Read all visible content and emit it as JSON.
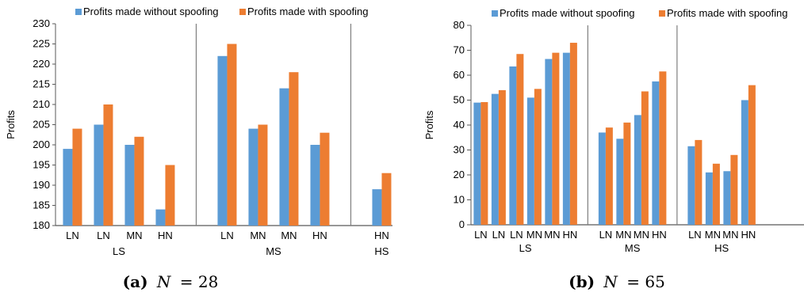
{
  "colors": {
    "without": "#5b9bd5",
    "with": "#ed7d31",
    "axis": "#595959",
    "grid": "#000000"
  },
  "legend": {
    "without": "Profits made without spoofing",
    "with": "Profits made with spoofing"
  },
  "captions": [
    {
      "label": "(a)",
      "math_var": "N",
      "math_rest": "= 28"
    },
    {
      "label": "(b)",
      "math_var": "N",
      "math_rest": "= 65"
    }
  ],
  "chart_data": [
    {
      "type": "bar",
      "ylabel": "Profits",
      "ylim": [
        180,
        230
      ],
      "yticks": [
        180,
        185,
        190,
        195,
        200,
        205,
        210,
        215,
        220,
        225,
        230
      ],
      "series_names": [
        "Profits made without spoofing",
        "Profits made with spoofing"
      ],
      "groups": [
        {
          "name": "LS",
          "categories": [
            "LN",
            "LN",
            "MN",
            "HN"
          ],
          "without": [
            199,
            205,
            200,
            184
          ],
          "with": [
            204,
            210,
            202,
            195
          ]
        },
        {
          "name": "MS",
          "categories": [
            "LN",
            "MN",
            "MN",
            "HN"
          ],
          "without": [
            222,
            204,
            214,
            200
          ],
          "with": [
            225,
            205,
            218,
            203
          ]
        },
        {
          "name": "HS",
          "categories": [
            "HN"
          ],
          "without": [
            189
          ],
          "with": [
            193
          ]
        }
      ]
    },
    {
      "type": "bar",
      "ylabel": "Profits",
      "ylim": [
        0,
        80
      ],
      "yticks": [
        0,
        10,
        20,
        30,
        40,
        50,
        60,
        70,
        80
      ],
      "series_names": [
        "Profits made without spoofing",
        "Profits made with spoofing"
      ],
      "groups": [
        {
          "name": "LS",
          "categories": [
            "LN",
            "LN",
            "LN",
            "MN",
            "MN",
            "HN"
          ],
          "without": [
            49,
            52.5,
            63.5,
            51,
            66.5,
            69
          ],
          "with": [
            49.2,
            54,
            68.5,
            54.5,
            69,
            73
          ]
        },
        {
          "name": "MS",
          "categories": [
            "LN",
            "MN",
            "MN",
            "HN"
          ],
          "without": [
            37,
            34.5,
            44,
            57.5
          ],
          "with": [
            39,
            41,
            53.5,
            61.5
          ]
        },
        {
          "name": "HS",
          "categories": [
            "LN",
            "MN",
            "MN",
            "HN"
          ],
          "without": [
            31.5,
            21,
            21.5,
            50
          ],
          "with": [
            34,
            24.5,
            28,
            56
          ]
        }
      ]
    }
  ]
}
